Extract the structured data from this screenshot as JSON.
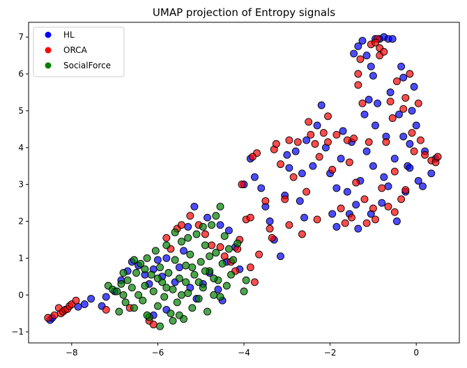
{
  "chart_data": {
    "type": "scatter",
    "title": "UMAP projection of Entropy signals",
    "xlabel": "",
    "ylabel": "",
    "xlim": [
      -9.0,
      1.0
    ],
    "ylim": [
      -1.3,
      7.4
    ],
    "xticks": [
      -8,
      -6,
      -4,
      -2,
      0
    ],
    "yticks": [
      -1,
      0,
      1,
      2,
      3,
      4,
      5,
      6,
      7
    ],
    "xtick_labels": [
      "−8",
      "−6",
      "−4",
      "−2",
      "0"
    ],
    "ytick_labels": [
      "−1",
      "0",
      "1",
      "2",
      "3",
      "4",
      "5",
      "6",
      "7"
    ],
    "grid": false,
    "legend_position": "top-left",
    "series": [
      {
        "name": "HL",
        "color": "#0000ff",
        "points": [
          [
            -8.5,
            -0.68
          ],
          [
            -8.45,
            -0.62
          ],
          [
            -7.85,
            -0.32
          ],
          [
            -7.7,
            -0.25
          ],
          [
            -7.55,
            -0.1
          ],
          [
            -7.3,
            -0.3
          ],
          [
            -7.2,
            -0.05
          ],
          [
            -7.0,
            0.1
          ],
          [
            -6.85,
            0.4
          ],
          [
            -6.7,
            0.65
          ],
          [
            -6.6,
            0.9
          ],
          [
            -6.45,
            0.8
          ],
          [
            -6.3,
            0.55
          ],
          [
            -6.2,
            0.3
          ],
          [
            -6.1,
            0.7
          ],
          [
            -6.0,
            0.95
          ],
          [
            -5.9,
            0.5
          ],
          [
            -5.8,
            1.0
          ],
          [
            -5.6,
            0.35
          ],
          [
            -5.5,
            0.75
          ],
          [
            -5.4,
            1.2
          ],
          [
            -5.25,
            0.2
          ],
          [
            -5.1,
            -0.1
          ],
          [
            -4.95,
            0.3
          ],
          [
            -4.8,
            0.6
          ],
          [
            -4.6,
            0.15
          ],
          [
            -4.5,
            -0.15
          ],
          [
            -4.4,
            0.9
          ],
          [
            -4.2,
            1.3
          ],
          [
            -4.1,
            0.7
          ],
          [
            -6.1,
            -0.55
          ],
          [
            -5.8,
            -0.4
          ],
          [
            -5.15,
            2.4
          ],
          [
            -5.3,
            1.85
          ],
          [
            -4.85,
            2.1
          ],
          [
            -4.55,
            1.9
          ],
          [
            -4.35,
            1.75
          ],
          [
            -4.0,
            3.0
          ],
          [
            -3.85,
            3.7
          ],
          [
            -3.75,
            3.2
          ],
          [
            -3.6,
            2.9
          ],
          [
            -3.5,
            2.4
          ],
          [
            -3.4,
            2.0
          ],
          [
            -3.3,
            1.5
          ],
          [
            -3.15,
            1.05
          ],
          [
            -3.05,
            2.7
          ],
          [
            -2.95,
            3.45
          ],
          [
            -2.8,
            3.9
          ],
          [
            -2.7,
            2.55
          ],
          [
            -2.6,
            2.1
          ],
          [
            -2.55,
            4.2
          ],
          [
            -2.4,
            3.5
          ],
          [
            -2.3,
            4.6
          ],
          [
            -2.2,
            5.15
          ],
          [
            -2.1,
            4.0
          ],
          [
            -2.0,
            3.3
          ],
          [
            -1.95,
            2.2
          ],
          [
            -1.85,
            1.85
          ],
          [
            -1.75,
            3.7
          ],
          [
            -1.7,
            4.45
          ],
          [
            -1.6,
            2.8
          ],
          [
            -1.5,
            4.15
          ],
          [
            -1.4,
            2.45
          ],
          [
            -1.35,
            1.8
          ],
          [
            -1.3,
            3.1
          ],
          [
            -1.2,
            4.9
          ],
          [
            -1.15,
            3.9
          ],
          [
            -1.05,
            2.2
          ],
          [
            -1.0,
            3.5
          ],
          [
            -0.95,
            4.6
          ],
          [
            -0.9,
            5.2
          ],
          [
            -0.8,
            2.5
          ],
          [
            -0.75,
            3.2
          ],
          [
            -0.7,
            4.3
          ],
          [
            -0.6,
            5.5
          ],
          [
            -0.5,
            3.7
          ],
          [
            -0.45,
            2.0
          ],
          [
            -0.4,
            4.9
          ],
          [
            -0.35,
            6.2
          ],
          [
            -0.3,
            5.9
          ],
          [
            -0.25,
            2.8
          ],
          [
            -0.2,
            3.5
          ],
          [
            -0.15,
            4.1
          ],
          [
            -0.1,
            5.0
          ],
          [
            -0.05,
            5.65
          ],
          [
            0.0,
            4.6
          ],
          [
            0.05,
            3.1
          ],
          [
            0.15,
            2.95
          ],
          [
            0.2,
            3.9
          ],
          [
            0.35,
            3.3
          ],
          [
            0.45,
            3.7
          ],
          [
            -1.45,
            6.55
          ],
          [
            -1.35,
            6.75
          ],
          [
            -1.25,
            6.9
          ],
          [
            -1.15,
            6.5
          ],
          [
            -1.05,
            6.2
          ],
          [
            -0.95,
            6.95
          ],
          [
            -0.85,
            6.95
          ],
          [
            -0.75,
            7.0
          ],
          [
            -0.65,
            6.95
          ],
          [
            -0.55,
            6.95
          ],
          [
            -1.0,
            5.95
          ],
          [
            -1.1,
            5.3
          ],
          [
            -0.3,
            4.3
          ],
          [
            -0.15,
            3.45
          ],
          [
            -2.65,
            3.3
          ],
          [
            -3.0,
            3.8
          ],
          [
            -1.85,
            2.9
          ],
          [
            -1.55,
            2.2
          ],
          [
            -0.65,
            2.95
          ]
        ]
      },
      {
        "name": "ORCA",
        "color": "#ff0000",
        "points": [
          [
            -8.55,
            -0.62
          ],
          [
            -8.4,
            -0.55
          ],
          [
            -8.3,
            -0.35
          ],
          [
            -8.25,
            -0.5
          ],
          [
            -8.2,
            -0.45
          ],
          [
            -8.15,
            -0.4
          ],
          [
            -8.1,
            -0.38
          ],
          [
            -8.05,
            -0.3
          ],
          [
            -8.0,
            -0.25
          ],
          [
            -7.9,
            -0.15
          ],
          [
            -7.2,
            -0.4
          ],
          [
            -6.65,
            -0.35
          ],
          [
            -6.2,
            -0.7
          ],
          [
            -6.1,
            -0.8
          ],
          [
            -5.8,
            1.55
          ],
          [
            -5.7,
            1.25
          ],
          [
            -5.55,
            1.8
          ],
          [
            -5.45,
            1.9
          ],
          [
            -5.25,
            2.15
          ],
          [
            -5.05,
            1.9
          ],
          [
            -4.9,
            1.65
          ],
          [
            -4.75,
            1.35
          ],
          [
            -4.55,
            1.3
          ],
          [
            -4.45,
            1.05
          ],
          [
            -4.3,
            0.9
          ],
          [
            -4.2,
            0.65
          ],
          [
            -4.1,
            1.5
          ],
          [
            -4.05,
            3.0
          ],
          [
            -3.95,
            2.05
          ],
          [
            -3.85,
            0.75
          ],
          [
            -3.75,
            0.35
          ],
          [
            -3.7,
            3.85
          ],
          [
            -3.65,
            1.1
          ],
          [
            -3.5,
            2.55
          ],
          [
            -3.4,
            1.8
          ],
          [
            -3.3,
            3.95
          ],
          [
            -3.25,
            4.1
          ],
          [
            -3.15,
            3.55
          ],
          [
            -3.05,
            2.6
          ],
          [
            -2.95,
            1.9
          ],
          [
            -2.85,
            3.2
          ],
          [
            -2.75,
            4.15
          ],
          [
            -2.65,
            1.65
          ],
          [
            -2.55,
            2.8
          ],
          [
            -2.45,
            4.35
          ],
          [
            -2.35,
            4.1
          ],
          [
            -2.3,
            2.05
          ],
          [
            -2.25,
            3.75
          ],
          [
            -2.15,
            4.4
          ],
          [
            -2.05,
            4.15
          ],
          [
            -1.95,
            3.4
          ],
          [
            -1.85,
            4.35
          ],
          [
            -1.75,
            2.35
          ],
          [
            -1.65,
            1.95
          ],
          [
            -1.55,
            3.6
          ],
          [
            -1.45,
            4.25
          ],
          [
            -1.4,
            3.05
          ],
          [
            -1.35,
            5.7
          ],
          [
            -1.3,
            6.4
          ],
          [
            -1.25,
            5.2
          ],
          [
            -1.2,
            2.6
          ],
          [
            -1.15,
            1.95
          ],
          [
            -1.1,
            4.15
          ],
          [
            -1.0,
            2.35
          ],
          [
            -0.95,
            2.05
          ],
          [
            -0.9,
            6.95
          ],
          [
            -0.85,
            6.5
          ],
          [
            -0.8,
            2.9
          ],
          [
            -0.7,
            4.15
          ],
          [
            -0.65,
            2.4
          ],
          [
            -0.6,
            5.25
          ],
          [
            -0.55,
            4.8
          ],
          [
            -0.5,
            3.35
          ],
          [
            -0.45,
            5.8
          ],
          [
            -0.35,
            2.6
          ],
          [
            -0.3,
            5.05
          ],
          [
            -0.25,
            5.35
          ],
          [
            -0.15,
            6.0
          ],
          [
            -0.1,
            4.4
          ],
          [
            -0.05,
            3.9
          ],
          [
            0.05,
            5.2
          ],
          [
            0.1,
            4.2
          ],
          [
            0.2,
            3.8
          ],
          [
            0.35,
            3.65
          ],
          [
            0.45,
            3.6
          ],
          [
            0.5,
            3.75
          ],
          [
            -1.05,
            6.8
          ],
          [
            -0.95,
            6.85
          ],
          [
            -0.85,
            6.7
          ],
          [
            -0.75,
            6.6
          ],
          [
            -1.35,
            6.0
          ],
          [
            -1.6,
            4.2
          ],
          [
            -2.5,
            4.7
          ],
          [
            -2.95,
            4.2
          ],
          [
            -3.8,
            3.75
          ],
          [
            -2.05,
            4.85
          ],
          [
            -0.25,
            2.85
          ],
          [
            -0.5,
            2.25
          ],
          [
            -1.5,
            2.1
          ],
          [
            -4.15,
            1.25
          ],
          [
            -3.85,
            2.1
          ],
          [
            -3.35,
            1.55
          ]
        ]
      },
      {
        "name": "SocialForce",
        "color": "#008000",
        "points": [
          [
            -7.15,
            0.25
          ],
          [
            -7.05,
            0.15
          ],
          [
            -6.95,
            0.1
          ],
          [
            -6.9,
            -0.45
          ],
          [
            -6.85,
            0.3
          ],
          [
            -6.8,
            0.0
          ],
          [
            -6.75,
            -0.2
          ],
          [
            -6.7,
            0.4
          ],
          [
            -6.6,
            0.2
          ],
          [
            -6.55,
            -0.35
          ],
          [
            -6.5,
            0.6
          ],
          [
            -6.45,
            0.0
          ],
          [
            -6.4,
            0.85
          ],
          [
            -6.35,
            -0.15
          ],
          [
            -6.3,
            0.25
          ],
          [
            -6.25,
            1.0
          ],
          [
            -6.2,
            -0.6
          ],
          [
            -6.15,
            0.55
          ],
          [
            -6.1,
            0.1
          ],
          [
            -6.05,
            1.2
          ],
          [
            -6.0,
            -0.3
          ],
          [
            -5.95,
            0.75
          ],
          [
            -5.9,
            0.35
          ],
          [
            -5.85,
            -0.05
          ],
          [
            -5.8,
            1.35
          ],
          [
            -5.75,
            0.6
          ],
          [
            -5.7,
            -0.5
          ],
          [
            -5.65,
            0.15
          ],
          [
            -5.6,
            0.95
          ],
          [
            -5.55,
            -0.2
          ],
          [
            -5.5,
            0.45
          ],
          [
            -5.45,
            1.45
          ],
          [
            -5.4,
            -0.65
          ],
          [
            -5.35,
            0.8
          ],
          [
            -5.3,
            0.05
          ],
          [
            -5.25,
            1.1
          ],
          [
            -5.2,
            -0.35
          ],
          [
            -5.15,
            0.55
          ],
          [
            -5.1,
            1.65
          ],
          [
            -5.05,
            -0.1
          ],
          [
            -5.0,
            0.9
          ],
          [
            -4.95,
            0.2
          ],
          [
            -4.9,
            1.35
          ],
          [
            -4.85,
            -0.45
          ],
          [
            -4.8,
            0.65
          ],
          [
            -4.75,
            1.9
          ],
          [
            -4.7,
            0.0
          ],
          [
            -4.65,
            1.15
          ],
          [
            -4.6,
            0.4
          ],
          [
            -4.55,
            2.4
          ],
          [
            -4.5,
            0.85
          ],
          [
            -4.45,
            1.6
          ],
          [
            -4.4,
            0.25
          ],
          [
            -4.35,
            1.25
          ],
          [
            -4.3,
            0.55
          ],
          [
            -4.25,
            0.95
          ],
          [
            -4.15,
            1.4
          ],
          [
            -4.0,
            0.1
          ],
          [
            -3.95,
            0.4
          ],
          [
            -5.5,
            -0.55
          ],
          [
            -5.65,
            -0.7
          ],
          [
            -5.95,
            -0.85
          ],
          [
            -6.25,
            -0.55
          ],
          [
            -5.35,
            0.35
          ],
          [
            -4.9,
            0.65
          ],
          [
            -5.8,
            0.2
          ],
          [
            -6.0,
            0.45
          ],
          [
            -6.3,
            0.7
          ],
          [
            -5.2,
            0.75
          ],
          [
            -4.7,
            0.45
          ],
          [
            -4.55,
            -0.05
          ],
          [
            -5.6,
            1.7
          ],
          [
            -5.3,
            1.55
          ],
          [
            -4.95,
            1.85
          ],
          [
            -4.65,
            2.15
          ],
          [
            -6.55,
            0.95
          ],
          [
            -6.8,
            0.6
          ],
          [
            -5.05,
            0.35
          ],
          [
            -5.45,
            0.0
          ],
          [
            -4.8,
            1.05
          ]
        ]
      }
    ]
  }
}
